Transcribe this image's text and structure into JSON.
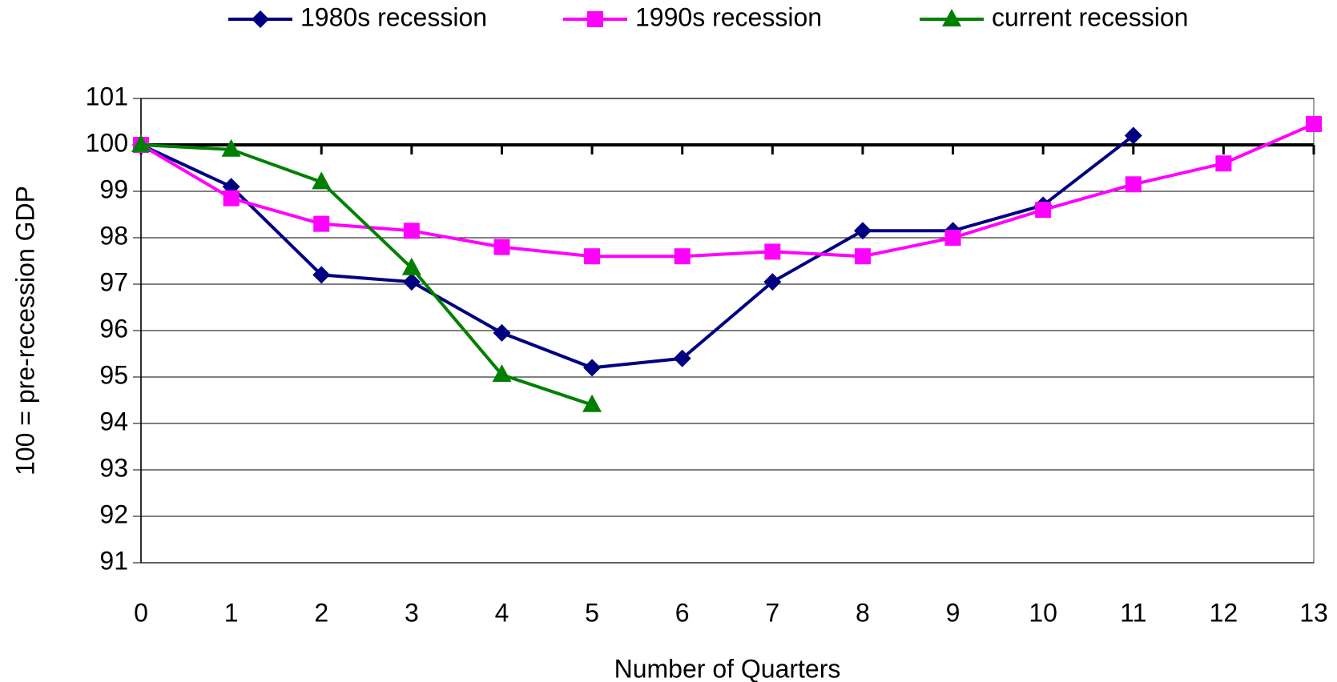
{
  "chart_data": {
    "type": "line",
    "x_label": "Number of Quarters",
    "y_label": "100 = pre-recession GDP",
    "x": [
      0,
      1,
      2,
      3,
      4,
      5,
      6,
      7,
      8,
      9,
      10,
      11,
      12,
      13
    ],
    "xlim": [
      0,
      13
    ],
    "xticks": [
      0,
      1,
      2,
      3,
      4,
      5,
      6,
      7,
      8,
      9,
      10,
      11,
      12,
      13
    ],
    "ylim": [
      91,
      101
    ],
    "yticks": [
      91,
      92,
      93,
      94,
      95,
      96,
      97,
      98,
      99,
      100,
      101
    ],
    "grid": true,
    "reference_line": 100,
    "legend": "top",
    "series": [
      {
        "name": "1980s recession",
        "color": "#000080",
        "marker": "diamond",
        "values": [
          100,
          99.1,
          97.2,
          97.05,
          95.95,
          95.2,
          95.4,
          97.05,
          98.15,
          98.15,
          98.7,
          100.2,
          null,
          null
        ]
      },
      {
        "name": "1990s recession",
        "color": "#ff00ff",
        "marker": "square",
        "values": [
          100,
          98.85,
          98.3,
          98.15,
          97.8,
          97.6,
          97.6,
          97.7,
          97.6,
          98.0,
          98.6,
          99.15,
          99.6,
          100.45
        ]
      },
      {
        "name": "current recession",
        "color": "#008000",
        "marker": "triangle",
        "values": [
          100,
          99.9,
          99.2,
          97.35,
          95.05,
          94.4,
          null,
          null,
          null,
          null,
          null,
          null,
          null,
          null
        ]
      }
    ]
  }
}
